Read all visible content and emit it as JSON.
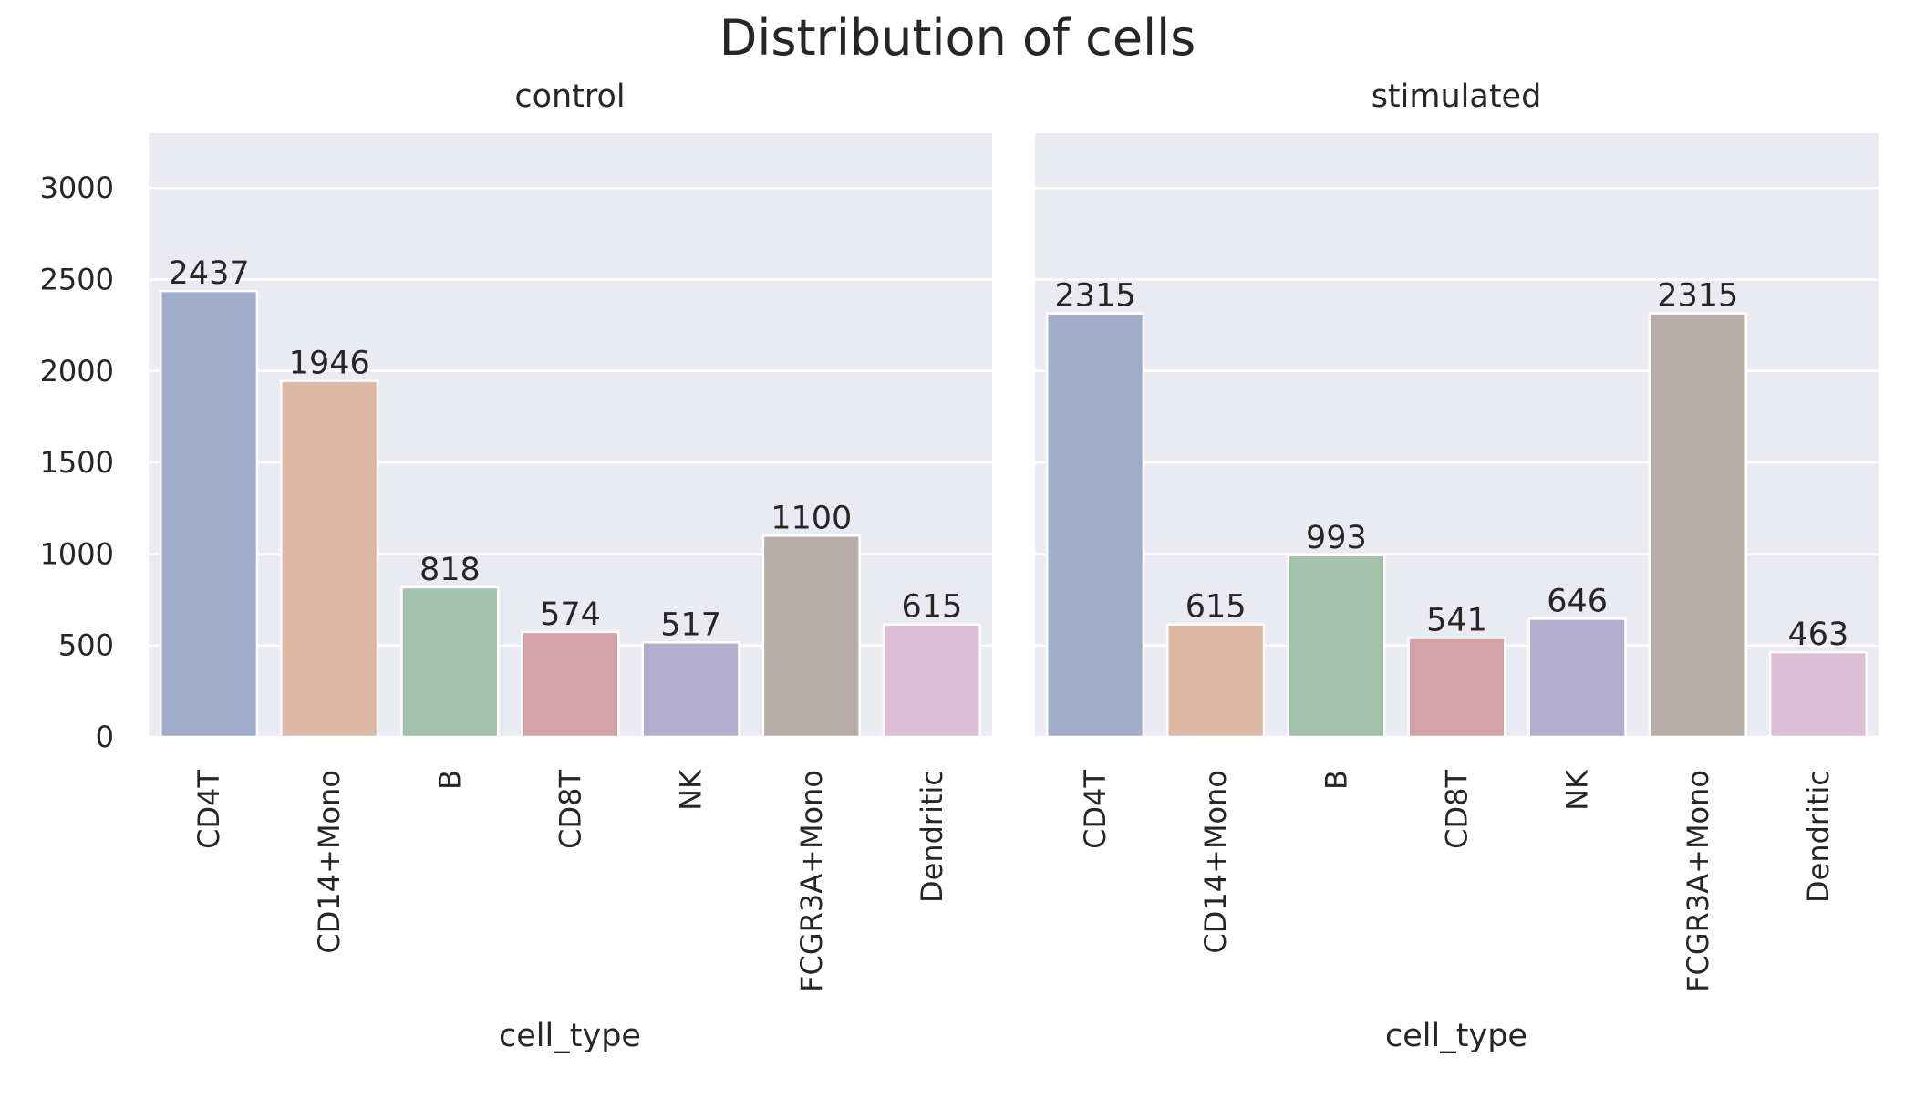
{
  "chart_data": {
    "type": "bar",
    "title": "Distribution of cells",
    "ylim": [
      0,
      3300
    ],
    "yticks": [
      0,
      500,
      1000,
      1500,
      2000,
      2500,
      3000
    ],
    "grid": true,
    "categories": [
      "CD4T",
      "CD14+Mono",
      "B",
      "CD8T",
      "NK",
      "FCGR3A+Mono",
      "Dendritic"
    ],
    "colors": [
      "#a0aecb",
      "#ddb8a5",
      "#a4c2ab",
      "#d4a3a8",
      "#b3aecd",
      "#b8aca8",
      "#ddbed6"
    ],
    "panels": [
      {
        "title": "control",
        "xlabel": "cell_type",
        "values": [
          2437,
          1946,
          818,
          574,
          517,
          1100,
          615
        ]
      },
      {
        "title": "stimulated",
        "xlabel": "cell_type",
        "values": [
          2315,
          615,
          993,
          541,
          646,
          2315,
          463
        ]
      }
    ]
  }
}
